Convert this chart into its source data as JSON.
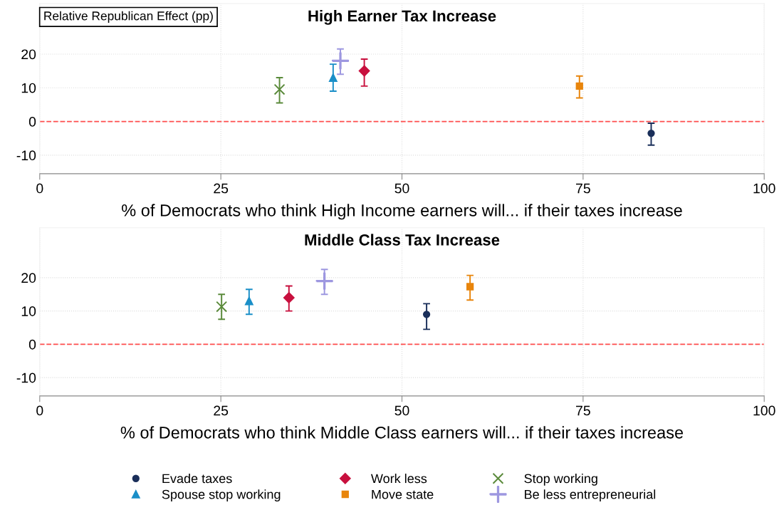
{
  "chart_data": [
    {
      "type": "scatter",
      "title": "High Earner Tax Increase",
      "ylabel": "Relative Republican Effect (pp)",
      "xlabel": "% of Democrats who think High Income earners will... if their taxes increase",
      "xlim": [
        0,
        100
      ],
      "xticks": [
        0,
        25,
        50,
        75,
        100
      ],
      "ylim": [
        -15.5,
        35
      ],
      "yticks": [
        -10,
        0,
        10,
        20
      ],
      "grid": true,
      "legend": "bottom",
      "ref_lines": [
        {
          "axis": "y",
          "value": 0,
          "color": "#ff4d4d",
          "line_style": "dashed"
        }
      ],
      "series": [
        {
          "name": "Evade taxes",
          "color": "#1a2f5a",
          "marker": "circle",
          "x": [
            84.4
          ],
          "values": [
            -3.5
          ],
          "errors": [
            [
              -7,
              -0.5
            ]
          ]
        },
        {
          "name": "Spouse stop working",
          "color": "#1a8fc8",
          "marker": "triangle",
          "x": [
            40.5
          ],
          "values": [
            13
          ],
          "errors": [
            [
              9,
              17
            ]
          ]
        },
        {
          "name": "Work less",
          "color": "#c8103e",
          "marker": "diamond",
          "x": [
            44.8
          ],
          "values": [
            15
          ],
          "errors": [
            [
              10.5,
              18.5
            ]
          ]
        },
        {
          "name": "Move state",
          "color": "#e8850c",
          "marker": "square",
          "x": [
            74.5
          ],
          "values": [
            10.5
          ],
          "errors": [
            [
              7,
              13.5
            ]
          ]
        },
        {
          "name": "Stop working",
          "color": "#5a8a3a",
          "marker": "cross",
          "x": [
            33.1
          ],
          "values": [
            9.5
          ],
          "errors": [
            [
              5.5,
              13
            ]
          ]
        },
        {
          "name": "Be less entrepreneurial",
          "color": "#9d97e0",
          "marker": "plus",
          "x": [
            41.5
          ],
          "values": [
            18
          ],
          "errors": [
            [
              14,
              21.5
            ]
          ]
        }
      ]
    },
    {
      "type": "scatter",
      "title": "Middle Class Tax Increase",
      "xlabel": "% of Democrats who think Middle Class earners will... if their taxes increase",
      "xlim": [
        0,
        100
      ],
      "xticks": [
        0,
        25,
        50,
        75,
        100
      ],
      "ylim": [
        -15.5,
        35
      ],
      "yticks": [
        -10,
        0,
        10,
        20
      ],
      "grid": true,
      "ref_lines": [
        {
          "axis": "y",
          "value": 0,
          "color": "#ff4d4d",
          "line_style": "dashed"
        }
      ],
      "series": [
        {
          "color": "#1a2f5a",
          "marker": "circle",
          "x": [
            53.4
          ],
          "values": [
            9
          ],
          "errors": [
            [
              4.5,
              12.2
            ]
          ]
        },
        {
          "color": "#1a8fc8",
          "marker": "triangle",
          "x": [
            28.9
          ],
          "values": [
            13
          ],
          "errors": [
            [
              9,
              16.5
            ]
          ]
        },
        {
          "color": "#c8103e",
          "marker": "diamond",
          "x": [
            34.4
          ],
          "values": [
            14
          ],
          "errors": [
            [
              10,
              17.5
            ]
          ]
        },
        {
          "color": "#e8850c",
          "marker": "square",
          "x": [
            59.4
          ],
          "values": [
            17.3
          ],
          "errors": [
            [
              13.3,
              20.7
            ]
          ]
        },
        {
          "color": "#5a8a3a",
          "marker": "cross",
          "x": [
            25.1
          ],
          "values": [
            11.3
          ],
          "errors": [
            [
              7.5,
              15
            ]
          ]
        },
        {
          "color": "#9d97e0",
          "marker": "plus",
          "x": [
            39.3
          ],
          "values": [
            19
          ],
          "errors": [
            [
              15,
              22.5
            ]
          ]
        }
      ]
    }
  ]
}
